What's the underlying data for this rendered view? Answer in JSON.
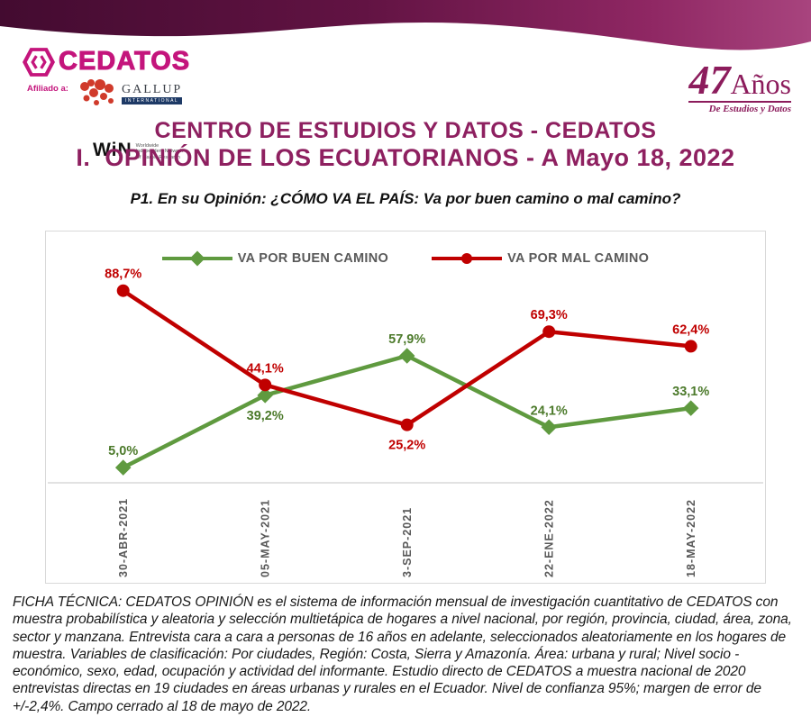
{
  "logo": {
    "name": "CEDATOS",
    "affiliated_label": "Afiliado a:",
    "gallup": "GALLUP",
    "gallup_international": "INTERNATIONAL",
    "win": "WiN",
    "win_caption": "Worldwide\nIndependent Network\nOf Market Research"
  },
  "brand": {
    "years_number": "47",
    "years_word": "Años",
    "tagline": "De Estudios y Datos"
  },
  "header": {
    "title_line1": "CENTRO DE ESTUDIOS Y DATOS - CEDATOS",
    "title_line2": "I.  OPINIÓN DE LOS ECUATORIANOS - A Mayo 18, 2022",
    "question": "P1. En su Opinión: ¿CÓMO VA EL PAÍS: Va por buen camino o mal camino?"
  },
  "colors": {
    "banner_dark": "#430b30",
    "banner_light": "#a8447e",
    "title_magenta": "#8e2060",
    "logo_pink": "#c4157c",
    "green_series": "#5f9a3f",
    "green_label": "#4c7a2b",
    "red_series": "#c00000",
    "axis_gray": "#d9d9d9",
    "text_gray": "#595959"
  },
  "chart_data": {
    "type": "line",
    "title": "",
    "xlabel": "",
    "ylabel": "",
    "ylim": [
      0,
      100
    ],
    "grid": false,
    "legend_position": "top-center",
    "x_tick_rotation": -90,
    "categories": [
      "30-ABR-2021",
      "05-MAY-2021",
      "3-SEP-2021",
      "22-ENE-2022",
      "18-MAY-2022"
    ],
    "series": [
      {
        "name": "VA POR BUEN CAMINO",
        "color": "#5f9a3f",
        "label_color": "#4c7a2b",
        "marker": "diamond",
        "values": [
          5.0,
          39.2,
          57.9,
          24.1,
          33.1
        ],
        "labels": [
          "5,0%",
          "39,2%",
          "57,9%",
          "24,1%",
          "33,1%"
        ],
        "label_pos": [
          "above",
          "below",
          "above",
          "above",
          "above"
        ]
      },
      {
        "name": "VA POR MAL CAMINO",
        "color": "#c00000",
        "label_color": "#c00000",
        "marker": "circle",
        "values": [
          88.7,
          44.1,
          25.2,
          69.3,
          62.4
        ],
        "labels": [
          "88,7%",
          "44,1%",
          "25,2%",
          "69,3%",
          "62,4%"
        ],
        "label_pos": [
          "above",
          "above",
          "below",
          "above",
          "above"
        ]
      }
    ]
  },
  "footer": {
    "text": "FICHA TÉCNICA: CEDATOS OPINIÓN es el sistema de información mensual de investigación cuantitativo de CEDATOS con muestra probabilística y aleatoria y selección multietápica de hogares a nivel nacional, por región, provincia, ciudad, área, zona, sector y manzana. Entrevista cara a cara a personas de 16 años en adelante, seleccionados aleatoriamente en los hogares de muestra. Variables de clasificación: Por ciudades, Región: Costa, Sierra y Amazonía. Área: urbana y rural; Nivel socio - económico, sexo, edad, ocupación y actividad del informante. Estudio directo de CEDATOS a muestra nacional de 2020 entrevistas directas en 19 ciudades en áreas urbanas y rurales en el Ecuador. Nivel de confianza 95%; margen de error de +/-2,4%. Campo cerrado al 18 de mayo de 2022."
  }
}
